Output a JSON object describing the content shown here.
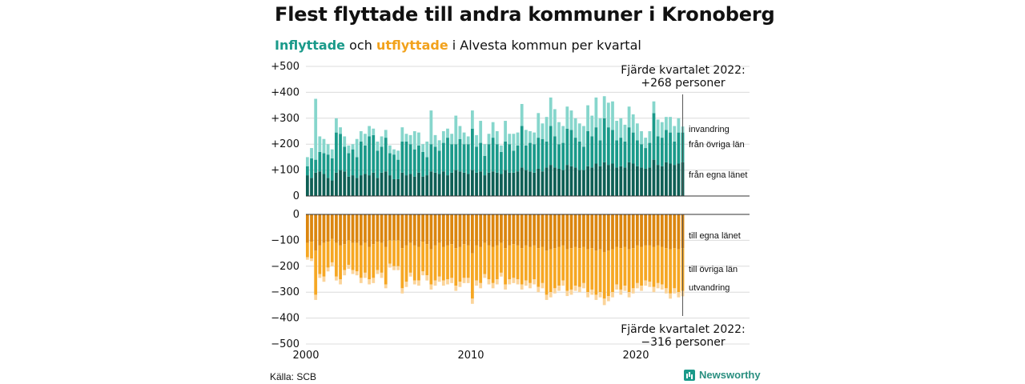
{
  "title": "Flest flyttade till andra kommuner i Kronoberg",
  "subtitle": {
    "part1": "Inflyttade",
    "part2": " och ",
    "part3": "utflyttade",
    "part4": " i Alvesta kommun per kvartal"
  },
  "source": "Källa: SCB",
  "logo": {
    "text": "Newsworthy",
    "icon": "newsworthy-logo-icon"
  },
  "colors": {
    "in_egna": "#0e5f55",
    "in_ovriga": "#1a9a8a",
    "in_invandring": "#86d6cc",
    "out_egna": "#db860f",
    "out_ovriga": "#f6a723",
    "out_utvandring": "#fbd49a"
  },
  "chart_data": {
    "type": "bar",
    "stacked": true,
    "x_ticks": [
      "2000",
      "2010",
      "2020"
    ],
    "y_ticks_top": [
      "+500",
      "+400",
      "+300",
      "+200",
      "+100",
      "0"
    ],
    "y_ticks_bottom": [
      "0",
      "−100",
      "−200",
      "−300",
      "−400",
      "−500"
    ],
    "ylim_top": [
      0,
      500
    ],
    "ylim_bottom": [
      -500,
      0
    ],
    "grid": true,
    "start_year": 2000,
    "periods": 92,
    "inflow_labels": [
      "invandring",
      "från övriga län",
      "från egna länet"
    ],
    "outflow_labels": [
      "till egna länet",
      "till övriga län",
      "utvandring"
    ],
    "annotation_top": [
      "Fjärde kvartalet 2022:",
      "+268 personer"
    ],
    "annotation_bottom": [
      "Fjärde kvartalet 2022:",
      "−316 personer"
    ],
    "in_total": [
      150,
      185,
      375,
      230,
      220,
      200,
      180,
      300,
      265,
      230,
      195,
      200,
      220,
      250,
      240,
      270,
      260,
      210,
      230,
      255,
      195,
      180,
      175,
      265,
      240,
      235,
      250,
      245,
      200,
      210,
      330,
      235,
      215,
      250,
      260,
      240,
      310,
      270,
      245,
      230,
      330,
      235,
      290,
      200,
      240,
      285,
      250,
      195,
      290,
      240,
      240,
      245,
      355,
      255,
      250,
      245,
      320,
      280,
      305,
      380,
      335,
      285,
      270,
      345,
      330,
      300,
      280,
      270,
      350,
      310,
      380,
      300,
      385,
      360,
      365,
      290,
      300,
      275,
      345,
      315,
      280,
      250,
      225,
      250,
      365,
      295,
      285,
      305,
      305,
      270,
      300,
      268
    ],
    "in_egna": [
      80,
      70,
      90,
      95,
      85,
      70,
      60,
      90,
      100,
      95,
      75,
      80,
      70,
      80,
      85,
      80,
      90,
      70,
      90,
      95,
      80,
      65,
      65,
      90,
      80,
      85,
      75,
      90,
      75,
      80,
      95,
      90,
      85,
      95,
      80,
      90,
      100,
      95,
      90,
      85,
      100,
      90,
      95,
      80,
      90,
      95,
      90,
      85,
      100,
      90,
      90,
      95,
      110,
      100,
      95,
      90,
      105,
      95,
      110,
      120,
      110,
      105,
      100,
      120,
      115,
      110,
      100,
      100,
      115,
      110,
      125,
      115,
      130,
      120,
      125,
      110,
      115,
      110,
      130,
      125,
      115,
      110,
      105,
      110,
      140,
      120,
      115,
      130,
      125,
      120,
      125,
      130
    ],
    "in_ovriga": [
      35,
      75,
      50,
      75,
      80,
      90,
      85,
      155,
      140,
      95,
      90,
      100,
      80,
      130,
      110,
      150,
      145,
      105,
      100,
      130,
      85,
      95,
      75,
      120,
      130,
      115,
      105,
      105,
      95,
      70,
      105,
      100,
      90,
      110,
      145,
      110,
      100,
      125,
      110,
      115,
      160,
      100,
      110,
      75,
      110,
      130,
      110,
      85,
      110,
      110,
      85,
      100,
      160,
      95,
      110,
      110,
      120,
      125,
      100,
      150,
      120,
      95,
      105,
      140,
      140,
      115,
      110,
      90,
      135,
      120,
      140,
      100,
      170,
      145,
      130,
      105,
      110,
      100,
      135,
      120,
      100,
      90,
      80,
      95,
      180,
      110,
      110,
      125,
      120,
      90,
      120,
      115
    ],
    "out_total": [
      -175,
      -180,
      -330,
      -245,
      -260,
      -220,
      -200,
      -255,
      -270,
      -235,
      -210,
      -230,
      -235,
      -265,
      -245,
      -270,
      -265,
      -230,
      -245,
      -285,
      -205,
      -215,
      -215,
      -305,
      -280,
      -240,
      -270,
      -275,
      -235,
      -255,
      -290,
      -275,
      -260,
      -275,
      -270,
      -265,
      -295,
      -280,
      -265,
      -265,
      -345,
      -275,
      -285,
      -245,
      -270,
      -285,
      -270,
      -240,
      -290,
      -270,
      -265,
      -270,
      -290,
      -275,
      -285,
      -270,
      -300,
      -285,
      -330,
      -320,
      -305,
      -295,
      -275,
      -315,
      -310,
      -295,
      -300,
      -285,
      -320,
      -310,
      -330,
      -320,
      -350,
      -335,
      -320,
      -290,
      -310,
      -295,
      -320,
      -305,
      -285,
      -295,
      -275,
      -280,
      -300,
      -285,
      -290,
      -305,
      -325,
      -305,
      -320,
      -316
    ],
    "out_egna": [
      -110,
      -105,
      -140,
      -120,
      -110,
      -105,
      -95,
      -110,
      -120,
      -115,
      -100,
      -110,
      -110,
      -120,
      -110,
      -125,
      -115,
      -105,
      -110,
      -125,
      -100,
      -100,
      -100,
      -130,
      -120,
      -110,
      -120,
      -125,
      -105,
      -115,
      -135,
      -120,
      -110,
      -125,
      -120,
      -115,
      -130,
      -125,
      -115,
      -120,
      -150,
      -120,
      -125,
      -110,
      -120,
      -125,
      -120,
      -110,
      -130,
      -120,
      -115,
      -120,
      -130,
      -120,
      -125,
      -120,
      -130,
      -125,
      -140,
      -135,
      -130,
      -125,
      -120,
      -135,
      -130,
      -125,
      -130,
      -125,
      -135,
      -130,
      -140,
      -135,
      -145,
      -140,
      -135,
      -125,
      -130,
      -125,
      -135,
      -130,
      -120,
      -125,
      -120,
      -120,
      -125,
      -120,
      -125,
      -130,
      -135,
      -130,
      -135,
      -130
    ],
    "out_ovriga": [
      -55,
      -65,
      -170,
      -110,
      -130,
      -100,
      -90,
      -130,
      -130,
      -100,
      -95,
      -105,
      -110,
      -125,
      -115,
      -125,
      -130,
      -110,
      -115,
      -145,
      -90,
      -100,
      -100,
      -155,
      -140,
      -115,
      -135,
      -130,
      -115,
      -120,
      -135,
      -135,
      -130,
      -130,
      -130,
      -130,
      -145,
      -135,
      -130,
      -125,
      -175,
      -135,
      -140,
      -120,
      -130,
      -140,
      -130,
      -115,
      -140,
      -130,
      -130,
      -130,
      -140,
      -135,
      -140,
      -130,
      -150,
      -140,
      -170,
      -165,
      -155,
      -150,
      -135,
      -160,
      -160,
      -150,
      -150,
      -140,
      -165,
      -160,
      -170,
      -165,
      -180,
      -175,
      -165,
      -145,
      -160,
      -150,
      -165,
      -155,
      -145,
      -150,
      -135,
      -140,
      -155,
      -145,
      -145,
      -155,
      -170,
      -155,
      -165,
      -165
    ]
  }
}
